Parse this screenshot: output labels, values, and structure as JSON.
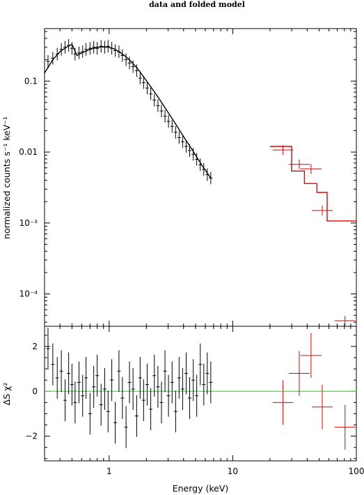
{
  "chart_data": [
    {
      "type": "line",
      "panel": "top",
      "title": "data and folded model",
      "ylabel": "normalized counts s⁻¹ keV⁻¹",
      "xscale": "log",
      "yscale": "log",
      "xlim": [
        0.3,
        100
      ],
      "ylim": [
        3.5e-05,
        0.55
      ],
      "y_tick_labels": [
        "0.1",
        "0.01",
        "10⁻³",
        "10⁻⁴"
      ],
      "y_tick_values": [
        0.1,
        0.01,
        0.001,
        0.0001
      ],
      "series": [
        {
          "color": "#000000",
          "kind": "data",
          "x": [
            0.32,
            0.35,
            0.38,
            0.41,
            0.44,
            0.47,
            0.5,
            0.53,
            0.57,
            0.61,
            0.65,
            0.7,
            0.75,
            0.8,
            0.86,
            0.92,
            0.98,
            1.05,
            1.12,
            1.2,
            1.28,
            1.37,
            1.46,
            1.56,
            1.67,
            1.78,
            1.9,
            2.03,
            2.17,
            2.32,
            2.48,
            2.65,
            2.83,
            3.02,
            3.23,
            3.45,
            3.68,
            3.93,
            4.2,
            4.48,
            4.79,
            5.11,
            5.46,
            5.83,
            6.22,
            6.64
          ],
          "y": [
            0.19,
            0.21,
            0.24,
            0.28,
            0.3,
            0.32,
            0.29,
            0.24,
            0.25,
            0.26,
            0.28,
            0.29,
            0.3,
            0.29,
            0.31,
            0.3,
            0.31,
            0.29,
            0.27,
            0.26,
            0.23,
            0.2,
            0.18,
            0.16,
            0.14,
            0.11,
            0.095,
            0.08,
            0.066,
            0.054,
            0.045,
            0.038,
            0.032,
            0.027,
            0.023,
            0.019,
            0.016,
            0.014,
            0.012,
            0.0105,
            0.0093,
            0.0079,
            0.0066,
            0.0057,
            0.0048,
            0.0043
          ]
        },
        {
          "color": "#000000",
          "kind": "model",
          "x": [
            0.3,
            0.35,
            0.4,
            0.45,
            0.5,
            0.55,
            0.6,
            0.7,
            0.8,
            0.9,
            1.0,
            1.1,
            1.2,
            1.35,
            1.5,
            1.7,
            1.9,
            2.1,
            2.4,
            2.7,
            3.0,
            3.4,
            3.8,
            4.2,
            4.7,
            5.2,
            5.7,
            6.2,
            6.7
          ],
          "y": [
            0.13,
            0.2,
            0.26,
            0.3,
            0.33,
            0.23,
            0.25,
            0.28,
            0.3,
            0.305,
            0.3,
            0.285,
            0.26,
            0.225,
            0.19,
            0.15,
            0.115,
            0.09,
            0.065,
            0.048,
            0.036,
            0.026,
            0.019,
            0.0145,
            0.0108,
            0.0081,
            0.0063,
            0.0051,
            0.0042
          ]
        },
        {
          "color": "#dd0000",
          "kind": "data",
          "x": [
            25.5,
            34.5,
            43.0,
            53.0,
            81.0
          ],
          "y": [
            0.0107,
            0.0067,
            0.0058,
            0.0015,
            4.2e-05
          ]
        },
        {
          "color": "#dd0000",
          "kind": "model",
          "x": [
            20,
            30,
            30,
            38,
            38,
            48,
            48,
            58,
            58,
            100
          ],
          "y": [
            0.012,
            0.012,
            0.0054,
            0.0054,
            0.0036,
            0.0036,
            0.0027,
            0.0027,
            0.00107,
            0.00107
          ]
        }
      ]
    },
    {
      "type": "scatter",
      "panel": "bottom",
      "xlabel": "Energy (keV)",
      "ylabel": "ΔS χ²",
      "xscale": "log",
      "xlim": [
        0.3,
        100
      ],
      "ylim": [
        -3.1,
        2.9
      ],
      "x_tick_labels": [
        "1",
        "10",
        "100"
      ],
      "x_tick_values": [
        1,
        10,
        100
      ],
      "y_tick_labels": [
        "2",
        "0",
        "−2"
      ],
      "y_tick_values": [
        2,
        0,
        -2
      ],
      "reference_line": {
        "y": 0,
        "color": "#33ee33"
      },
      "series": [
        {
          "color": "#000000",
          "x": [
            0.32,
            0.35,
            0.38,
            0.41,
            0.44,
            0.47,
            0.5,
            0.53,
            0.57,
            0.61,
            0.65,
            0.7,
            0.75,
            0.8,
            0.86,
            0.92,
            0.98,
            1.05,
            1.12,
            1.2,
            1.28,
            1.37,
            1.46,
            1.56,
            1.67,
            1.78,
            1.9,
            2.03,
            2.17,
            2.32,
            2.48,
            2.65,
            2.83,
            3.02,
            3.23,
            3.45,
            3.68,
            3.93,
            4.2,
            4.48,
            4.79,
            5.11,
            5.46,
            5.83,
            6.22,
            6.64
          ],
          "y": [
            1.9,
            1.2,
            0.6,
            0.9,
            -0.4,
            0.8,
            0.3,
            -0.5,
            0.4,
            -0.2,
            0.6,
            -1.0,
            0.2,
            0.7,
            -0.6,
            0.1,
            -0.9,
            0.5,
            -1.4,
            0.9,
            -0.3,
            -1.6,
            0.4,
            0.1,
            -1.1,
            0.6,
            -0.4,
            0.3,
            -0.8,
            0.7,
            0.2,
            -0.5,
            0.9,
            -0.2,
            0.4,
            -0.9,
            0.6,
            0.1,
            0.8,
            -0.3,
            0.5,
            -0.2,
            1.2,
            0.3,
            0.8,
            0.4
          ]
        },
        {
          "color": "#dd0000",
          "x": [
            25.5,
            34.5,
            43.0,
            53.0,
            81.0
          ],
          "y": [
            -0.5,
            0.8,
            1.6,
            -0.7,
            -1.6
          ]
        }
      ]
    }
  ]
}
